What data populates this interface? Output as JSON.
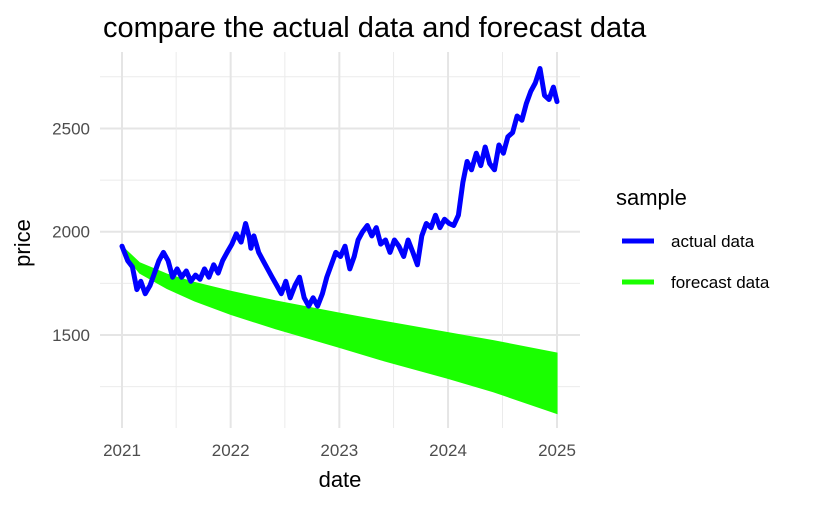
{
  "chart_data": {
    "type": "line",
    "title": "compare the actual data and forecast data",
    "xlabel": "date",
    "ylabel": "price",
    "x_ticks": [
      "2021",
      "2022",
      "2023",
      "2024",
      "2025"
    ],
    "y_ticks": [
      "1500",
      "2000",
      "2500"
    ],
    "xlim": [
      "2021-01-01",
      "2025-01-01"
    ],
    "ylim": [
      1050,
      2870
    ],
    "grid": true,
    "legend": {
      "title": "sample",
      "placement": "right",
      "entries": [
        "actual data",
        "forecast data"
      ]
    },
    "series": [
      {
        "name": "actual data",
        "color": "#0000ff",
        "style": "line",
        "x": [
          "2021-01-01",
          "2021-01-20",
          "2021-02-05",
          "2021-02-20",
          "2021-03-05",
          "2021-03-20",
          "2021-04-05",
          "2021-04-20",
          "2021-05-05",
          "2021-05-20",
          "2021-06-05",
          "2021-06-20",
          "2021-07-05",
          "2021-07-20",
          "2021-08-05",
          "2021-08-20",
          "2021-09-05",
          "2021-09-20",
          "2021-10-05",
          "2021-10-20",
          "2021-11-05",
          "2021-11-20",
          "2021-12-05",
          "2021-12-20",
          "2022-01-05",
          "2022-01-20",
          "2022-02-05",
          "2022-02-20",
          "2022-03-05",
          "2022-03-10",
          "2022-03-20",
          "2022-04-05",
          "2022-04-20",
          "2022-05-05",
          "2022-05-20",
          "2022-06-05",
          "2022-06-20",
          "2022-07-05",
          "2022-07-20",
          "2022-08-05",
          "2022-08-20",
          "2022-09-05",
          "2022-09-20",
          "2022-10-05",
          "2022-10-20",
          "2022-11-05",
          "2022-11-20",
          "2022-12-05",
          "2022-12-20",
          "2023-01-05",
          "2023-01-20",
          "2023-02-05",
          "2023-02-20",
          "2023-03-05",
          "2023-03-20",
          "2023-04-05",
          "2023-04-20",
          "2023-05-05",
          "2023-05-20",
          "2023-06-05",
          "2023-06-20",
          "2023-07-05",
          "2023-07-20",
          "2023-08-05",
          "2023-08-20",
          "2023-09-05",
          "2023-09-20",
          "2023-10-05",
          "2023-10-20",
          "2023-11-05",
          "2023-11-20",
          "2023-12-05",
          "2023-12-20",
          "2024-01-05",
          "2024-01-20",
          "2024-02-05",
          "2024-02-20",
          "2024-03-05",
          "2024-03-20",
          "2024-04-05",
          "2024-04-20",
          "2024-05-05",
          "2024-05-20",
          "2024-06-05",
          "2024-06-20",
          "2024-07-05",
          "2024-07-20",
          "2024-08-05",
          "2024-08-20",
          "2024-09-05",
          "2024-09-20",
          "2024-10-05",
          "2024-10-20",
          "2024-11-05",
          "2024-11-20",
          "2024-12-05",
          "2024-12-20",
          "2025-01-01"
        ],
        "y": [
          1930,
          1860,
          1830,
          1720,
          1760,
          1700,
          1740,
          1800,
          1860,
          1900,
          1860,
          1780,
          1820,
          1780,
          1810,
          1760,
          1790,
          1770,
          1820,
          1780,
          1840,
          1800,
          1860,
          1900,
          1940,
          1990,
          1950,
          2040,
          1970,
          1920,
          1980,
          1900,
          1860,
          1820,
          1780,
          1740,
          1700,
          1760,
          1680,
          1740,
          1780,
          1680,
          1640,
          1680,
          1640,
          1700,
          1780,
          1840,
          1900,
          1880,
          1930,
          1820,
          1880,
          1960,
          2000,
          2030,
          1980,
          2020,
          1940,
          1960,
          1900,
          1960,
          1930,
          1880,
          1960,
          1900,
          1840,
          1980,
          2040,
          2020,
          2080,
          2020,
          2060,
          2040,
          2030,
          2080,
          2240,
          2340,
          2300,
          2380,
          2320,
          2410,
          2330,
          2300,
          2420,
          2380,
          2460,
          2480,
          2560,
          2540,
          2620,
          2680,
          2720,
          2790,
          2660,
          2640,
          2700,
          2630
        ]
      },
      {
        "name": "forecast data",
        "color": "#1aff00",
        "style": "band",
        "x": [
          "2021-01-01",
          "2021-03-01",
          "2021-06-01",
          "2021-09-01",
          "2022-01-01",
          "2022-06-01",
          "2023-01-01",
          "2023-06-01",
          "2024-01-01",
          "2024-06-01",
          "2025-01-01"
        ],
        "upper": [
          1930,
          1850,
          1795,
          1755,
          1712,
          1665,
          1606,
          1566,
          1512,
          1473,
          1413
        ],
        "lower": [
          1905,
          1800,
          1725,
          1665,
          1600,
          1530,
          1440,
          1375,
          1290,
          1225,
          1120
        ]
      }
    ]
  }
}
